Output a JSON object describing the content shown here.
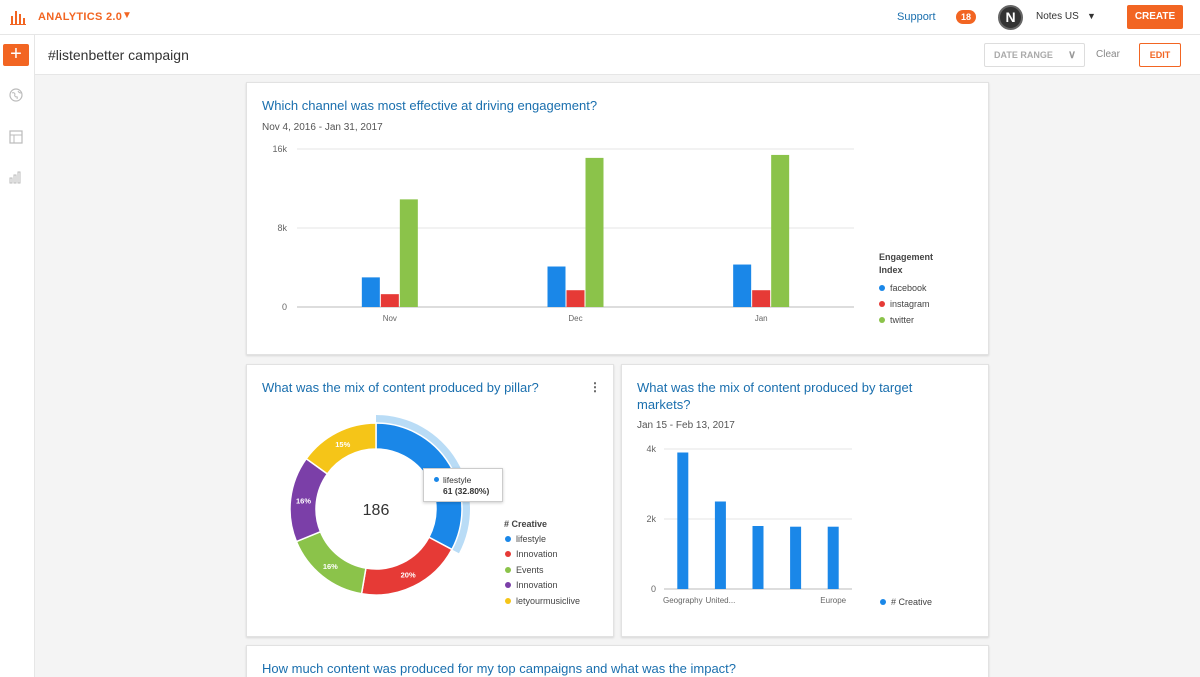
{
  "colors": {
    "accent": "#f26522",
    "link": "#1a6fae",
    "facebook": "#1a87e8",
    "instagram": "#e63a36",
    "twitter": "#8bc34a",
    "events": "#8bc34a",
    "innovation_purple": "#7b3fa8",
    "letyourmusiclive": "#f5c518"
  },
  "topbar": {
    "logo_icon": "bar-chart-icon",
    "app_title": "ANALYTICS 2.0",
    "support": "Support",
    "notification_count": "18",
    "avatar_letter": "N",
    "account_name": "Notes US",
    "create_label": "CREATE"
  },
  "subbar": {
    "page_title": "#listenbetter campaign",
    "date_range_label": "DATE RANGE",
    "clear_label": "Clear",
    "edit_label": "EDIT"
  },
  "rail": {
    "icons": [
      "plus-icon",
      "globe-icon",
      "table-icon",
      "chart-icon"
    ]
  },
  "card1": {
    "title": "Which channel was most effective at driving engagement?",
    "date": "Nov 4, 2016 - Jan 31, 2017",
    "legend_title_line1": "Engagement",
    "legend_title_line2": "Index"
  },
  "card2": {
    "title": "What was the mix of content produced by pillar?",
    "legend_title": "# Creative",
    "center_total": "186",
    "tooltip_label": "lifestyle",
    "tooltip_value": "61 (32.80%)"
  },
  "card3": {
    "title_line1": "What was the mix of content produced by target",
    "title_line2": "markets?",
    "date": "Jan 15 - Feb 13, 2017"
  },
  "card4": {
    "title": "How much content was produced for my top campaigns and what was the impact?"
  },
  "chart_data": [
    {
      "type": "bar",
      "title": "Which channel was most effective at driving engagement?",
      "categories": [
        "Nov",
        "Dec",
        "Jan"
      ],
      "series": [
        {
          "name": "facebook",
          "values": [
            3000,
            4100,
            4300
          ]
        },
        {
          "name": "instagram",
          "values": [
            1300,
            1700,
            1700
          ]
        },
        {
          "name": "twitter",
          "values": [
            10900,
            15100,
            15400
          ]
        }
      ],
      "ylim": [
        0,
        16000
      ],
      "yticks": [
        "0",
        "8k",
        "16k"
      ],
      "xlabel": "",
      "ylabel": "",
      "legend_title": "Engagement Index"
    },
    {
      "type": "pie",
      "title": "What was the mix of content produced by pillar?",
      "total": 186,
      "slices": [
        {
          "label": "lifestyle",
          "value": 61,
          "pct_label": "32.80%"
        },
        {
          "label": "Innovation",
          "value": 37,
          "pct_label": "20%"
        },
        {
          "label": "Events",
          "value": 30,
          "pct_label": "16%"
        },
        {
          "label": "Innovation",
          "value": 30,
          "pct_label": "16%"
        },
        {
          "label": "letyourmusiclive",
          "value": 28,
          "pct_label": "15%"
        }
      ],
      "legend_title": "# Creative"
    },
    {
      "type": "bar",
      "title": "What was the mix of content produced by target markets?",
      "categories": [
        "Geography",
        "United...",
        "",
        "",
        "Europe"
      ],
      "series": [
        {
          "name": "# Creative",
          "values": [
            3900,
            2500,
            1800,
            1780,
            1780
          ]
        }
      ],
      "ylim": [
        0,
        4000
      ],
      "yticks": [
        "0",
        "2k",
        "4k"
      ],
      "xlabel": "",
      "ylabel": ""
    }
  ]
}
